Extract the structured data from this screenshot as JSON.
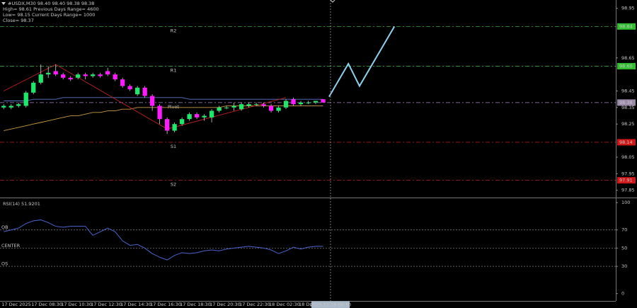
{
  "chart_data": [
    {
      "type": "candlestick",
      "header": [
        "#USDX,M30  98.40 98.40 98.38 98.38",
        "High= 98.61   Previous Days Range= 4600",
        "Low= 98.15   Current Days Range= 1000",
        "Close= 98.37"
      ],
      "categories": [
        "17 Dec 2025",
        null,
        null,
        null,
        "17 Dec 08:30",
        null,
        null,
        null,
        "17 Dec 10:30",
        null,
        null,
        null,
        "17 Dec 12:30",
        null,
        null,
        null,
        "17 Dec 14:30",
        null,
        null,
        null,
        "17 Dec 16:30",
        null,
        null,
        null,
        "17 Dec 18:30",
        null,
        null,
        null,
        "17 Dec 20:30",
        null,
        null,
        null,
        "17 Dec 22:30",
        null,
        null,
        null,
        "18 Dec 02:30",
        null,
        null,
        null,
        "18 De",
        null,
        null,
        null
      ],
      "open": [
        98.35,
        98.35,
        98.36,
        98.36,
        98.44,
        98.5,
        98.55,
        98.57,
        98.55,
        98.53,
        98.53,
        98.55,
        98.54,
        98.55,
        98.57,
        98.55,
        98.52,
        98.48,
        98.43,
        98.47,
        98.42,
        98.36,
        98.28,
        98.21,
        98.25,
        98.28,
        98.31,
        98.29,
        98.29,
        98.33,
        98.35,
        98.35,
        98.34,
        98.36,
        98.37,
        98.37,
        98.36,
        98.33,
        98.35,
        98.4,
        98.37,
        98.38,
        98.38,
        98.4
      ],
      "high": [
        98.37,
        98.37,
        98.38,
        98.45,
        98.51,
        98.61,
        98.6,
        98.61,
        98.56,
        98.54,
        98.56,
        98.56,
        98.56,
        98.56,
        98.59,
        98.56,
        98.53,
        98.49,
        98.48,
        98.48,
        98.43,
        98.37,
        98.29,
        98.26,
        98.29,
        98.32,
        98.32,
        98.31,
        98.34,
        98.36,
        98.36,
        98.38,
        98.38,
        98.38,
        98.38,
        98.38,
        98.37,
        98.36,
        98.4,
        98.41,
        98.39,
        98.39,
        98.39,
        98.4
      ],
      "low": [
        98.34,
        98.34,
        98.35,
        98.35,
        98.43,
        98.49,
        98.53,
        98.54,
        98.52,
        98.51,
        98.52,
        98.52,
        98.53,
        98.53,
        98.54,
        98.51,
        98.47,
        98.45,
        98.42,
        98.41,
        98.33,
        98.25,
        98.19,
        98.2,
        98.24,
        98.27,
        98.28,
        98.27,
        98.26,
        98.32,
        98.34,
        98.33,
        98.33,
        98.35,
        98.36,
        98.35,
        98.32,
        98.32,
        98.34,
        98.36,
        98.36,
        98.37,
        98.37,
        98.38
      ],
      "close": [
        98.36,
        98.36,
        98.37,
        98.44,
        98.5,
        98.55,
        98.56,
        98.55,
        98.53,
        98.52,
        98.55,
        98.54,
        98.55,
        98.54,
        98.55,
        98.52,
        98.48,
        98.46,
        98.47,
        98.42,
        98.36,
        98.28,
        98.21,
        98.25,
        98.28,
        98.31,
        98.29,
        98.3,
        98.33,
        98.35,
        98.35,
        98.36,
        98.37,
        98.37,
        98.37,
        98.36,
        98.33,
        98.35,
        98.39,
        98.37,
        98.38,
        98.38,
        98.39,
        98.38
      ],
      "up_color": "#1ee86a",
      "down_color": "#ff1aff",
      "wick_color": "#d0d0d0",
      "series": [
        {
          "color": "#5a78c8",
          "values": [
            98.39,
            98.39,
            98.39,
            98.39,
            98.4,
            98.4,
            98.4,
            98.4,
            98.41,
            98.41,
            98.41,
            98.41,
            98.41,
            98.41,
            98.41,
            98.41,
            98.41,
            98.41,
            98.41,
            98.41,
            98.41,
            98.41,
            98.41,
            98.41,
            98.41,
            98.4,
            98.4,
            98.4,
            98.4,
            98.4,
            98.4,
            98.4,
            98.4,
            98.4,
            98.4,
            98.4,
            98.4,
            98.4,
            98.4,
            98.4,
            98.4,
            98.4,
            98.4,
            98.4
          ]
        },
        {
          "color": "#c89a40",
          "values": [
            98.21,
            98.22,
            98.23,
            98.24,
            98.25,
            98.26,
            98.27,
            98.28,
            98.29,
            98.3,
            98.3,
            98.31,
            98.32,
            98.32,
            98.33,
            98.33,
            98.34,
            98.34,
            98.35,
            98.35,
            98.35,
            98.35,
            98.35,
            98.35,
            98.35,
            98.35,
            98.35,
            98.35,
            98.35,
            98.35,
            98.36,
            98.36,
            98.36,
            98.36,
            98.36,
            98.36,
            98.36,
            98.36,
            98.36,
            98.36,
            98.36,
            98.36,
            98.36,
            98.36
          ]
        }
      ],
      "zigzag": {
        "color": "#c02020",
        "x": [
          0,
          7,
          22,
          38
        ],
        "values": [
          98.45,
          98.61,
          98.22,
          98.41
        ]
      },
      "projection": {
        "color": "#8fd0ee",
        "x": [
          43.8,
          46.4,
          47.9,
          52.6
        ],
        "values": [
          98.415,
          98.615,
          98.48,
          98.84
        ]
      },
      "levels": [
        {
          "name": "R2",
          "value": 98.84,
          "label": "98.84",
          "color": "#3aa83a",
          "box_color": "#2fbf2f"
        },
        {
          "name": "R1",
          "value": 98.6,
          "label": "98.60",
          "color": "#3aa83a",
          "box_color": "#2fbf2f"
        },
        {
          "name": "Pivot",
          "value": 98.38,
          "label": "98.38",
          "color": "#a888c8",
          "box_color": "#9a8aa8"
        },
        {
          "name": "S1",
          "value": 98.14,
          "label": "98.14",
          "color": "#c02020",
          "box_color": "#d01818"
        },
        {
          "name": "S2",
          "value": 97.91,
          "label": "97.91",
          "color": "#c02020",
          "box_color": "#d01818"
        }
      ],
      "cursor": {
        "x": 44,
        "label": "2025.12.18 06:30"
      },
      "xlim": [
        -0.5,
        82.4
      ],
      "ylim": [
        97.81,
        99.0
      ],
      "yticks": [
        98.95,
        98.65,
        98.45,
        98.35,
        98.25,
        98.05,
        97.95,
        97.85
      ]
    },
    {
      "type": "line",
      "title": "RSI(14) 51.9201",
      "color": "#4a64d0",
      "values": [
        68,
        70,
        72,
        77,
        80,
        81,
        78,
        74,
        73,
        74,
        74,
        74,
        64,
        68,
        72,
        68,
        58,
        53,
        54,
        50,
        44,
        40,
        37,
        42,
        45,
        44,
        45,
        47,
        48,
        47,
        49,
        50,
        51,
        52,
        51,
        50,
        48,
        44,
        47,
        51,
        49,
        51,
        52,
        52
      ],
      "levels": [
        {
          "name": "OB",
          "value": 70
        },
        {
          "name": "CENTER",
          "value": 50
        },
        {
          "name": "OS",
          "value": 30
        }
      ],
      "xlim": [
        -0.5,
        82.4
      ],
      "ylim": [
        -8,
        104
      ],
      "yticks": [
        100,
        70,
        50,
        30,
        0
      ]
    }
  ]
}
